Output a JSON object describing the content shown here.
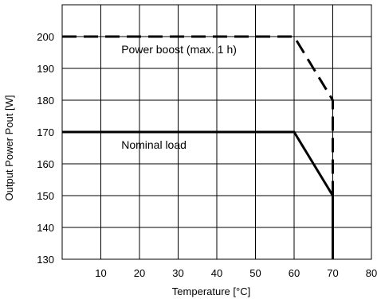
{
  "chart_data": {
    "type": "line",
    "xlabel": "Temperature [°C]",
    "ylabel": "Output Power Pout [W]",
    "xlim": [
      0,
      80
    ],
    "ylim": [
      130,
      210
    ],
    "xticks": [
      10,
      20,
      30,
      40,
      50,
      60,
      70,
      80
    ],
    "xtick_labels": [
      "10",
      "20",
      "30",
      "40",
      "50",
      "60",
      "70",
      "80"
    ],
    "yticks": [
      130,
      140,
      150,
      160,
      170,
      180,
      190,
      200
    ],
    "ytick_labels": [
      "130",
      "140",
      "150",
      "160",
      "170",
      "180",
      "190",
      "200"
    ],
    "grid": true,
    "series": [
      {
        "style": "dashed",
        "color": "#000000",
        "x": [
          0,
          60,
          70,
          70
        ],
        "y": [
          200,
          200,
          180,
          130
        ]
      },
      {
        "style": "solid",
        "color": "#000000",
        "x": [
          0,
          60,
          70,
          70
        ],
        "y": [
          170,
          170,
          150,
          130
        ]
      }
    ],
    "annotations": [
      {
        "text": "Power boost (max. 1 h)",
        "x": 15.3,
        "y": 196
      },
      {
        "text": "Nominal load",
        "x": 15.3,
        "y": 166
      }
    ]
  }
}
